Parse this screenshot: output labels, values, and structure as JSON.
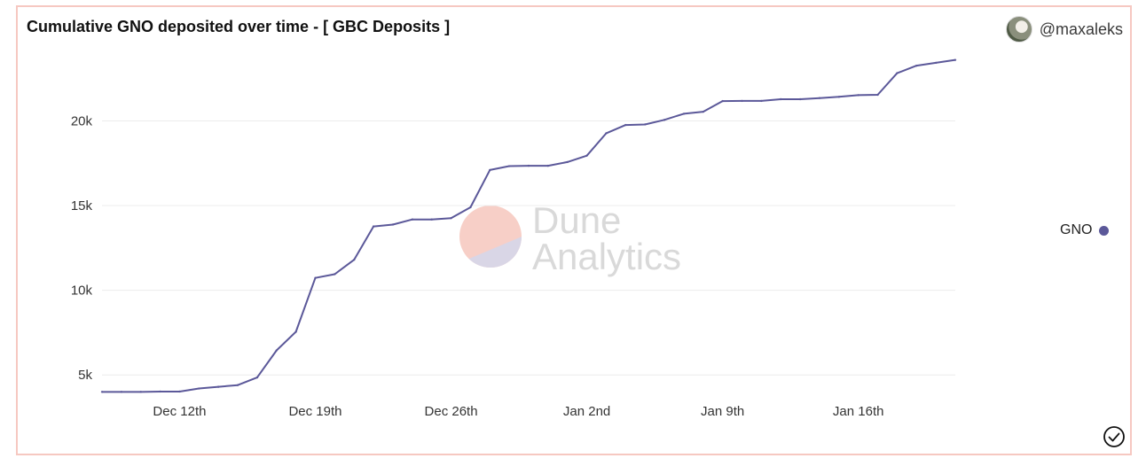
{
  "header": {
    "title": "Cumulative GNO deposited over time - [ GBC Deposits ]",
    "author": "@maxaleks"
  },
  "legend": {
    "label": "GNO",
    "color": "#5b5899"
  },
  "watermark": {
    "line1": "Dune",
    "line2": "Analytics"
  },
  "chart_data": {
    "type": "line",
    "title": "Cumulative GNO deposited over time - [ GBC Deposits ]",
    "xlabel": "",
    "ylabel": "",
    "ylim": [
      3600,
      24000
    ],
    "y_ticks": [
      5000,
      10000,
      15000,
      20000
    ],
    "y_tick_labels": [
      "5k",
      "10k",
      "15k",
      "20k"
    ],
    "x_tick_labels": [
      "Dec 12th",
      "Dec 19th",
      "Dec 26th",
      "Jan 2nd",
      "Jan 9th",
      "Jan 16th"
    ],
    "x_tick_day_index": [
      4,
      11,
      18,
      25,
      32,
      39
    ],
    "x_start_date": "Dec 8th",
    "grid": true,
    "legend_position": "right",
    "series": [
      {
        "name": "GNO",
        "color": "#5b5899",
        "values": [
          4000,
          4000,
          4000,
          4020,
          4020,
          4200,
          4300,
          4400,
          4850,
          6450,
          7550,
          10730,
          10950,
          11800,
          13770,
          13880,
          14180,
          14180,
          14260,
          14900,
          17100,
          17330,
          17350,
          17350,
          17570,
          17950,
          19270,
          19760,
          19790,
          20060,
          20420,
          20540,
          21170,
          21180,
          21180,
          21280,
          21280,
          21350,
          21420,
          21520,
          21540,
          22820,
          23260,
          23430,
          23600
        ]
      }
    ]
  }
}
